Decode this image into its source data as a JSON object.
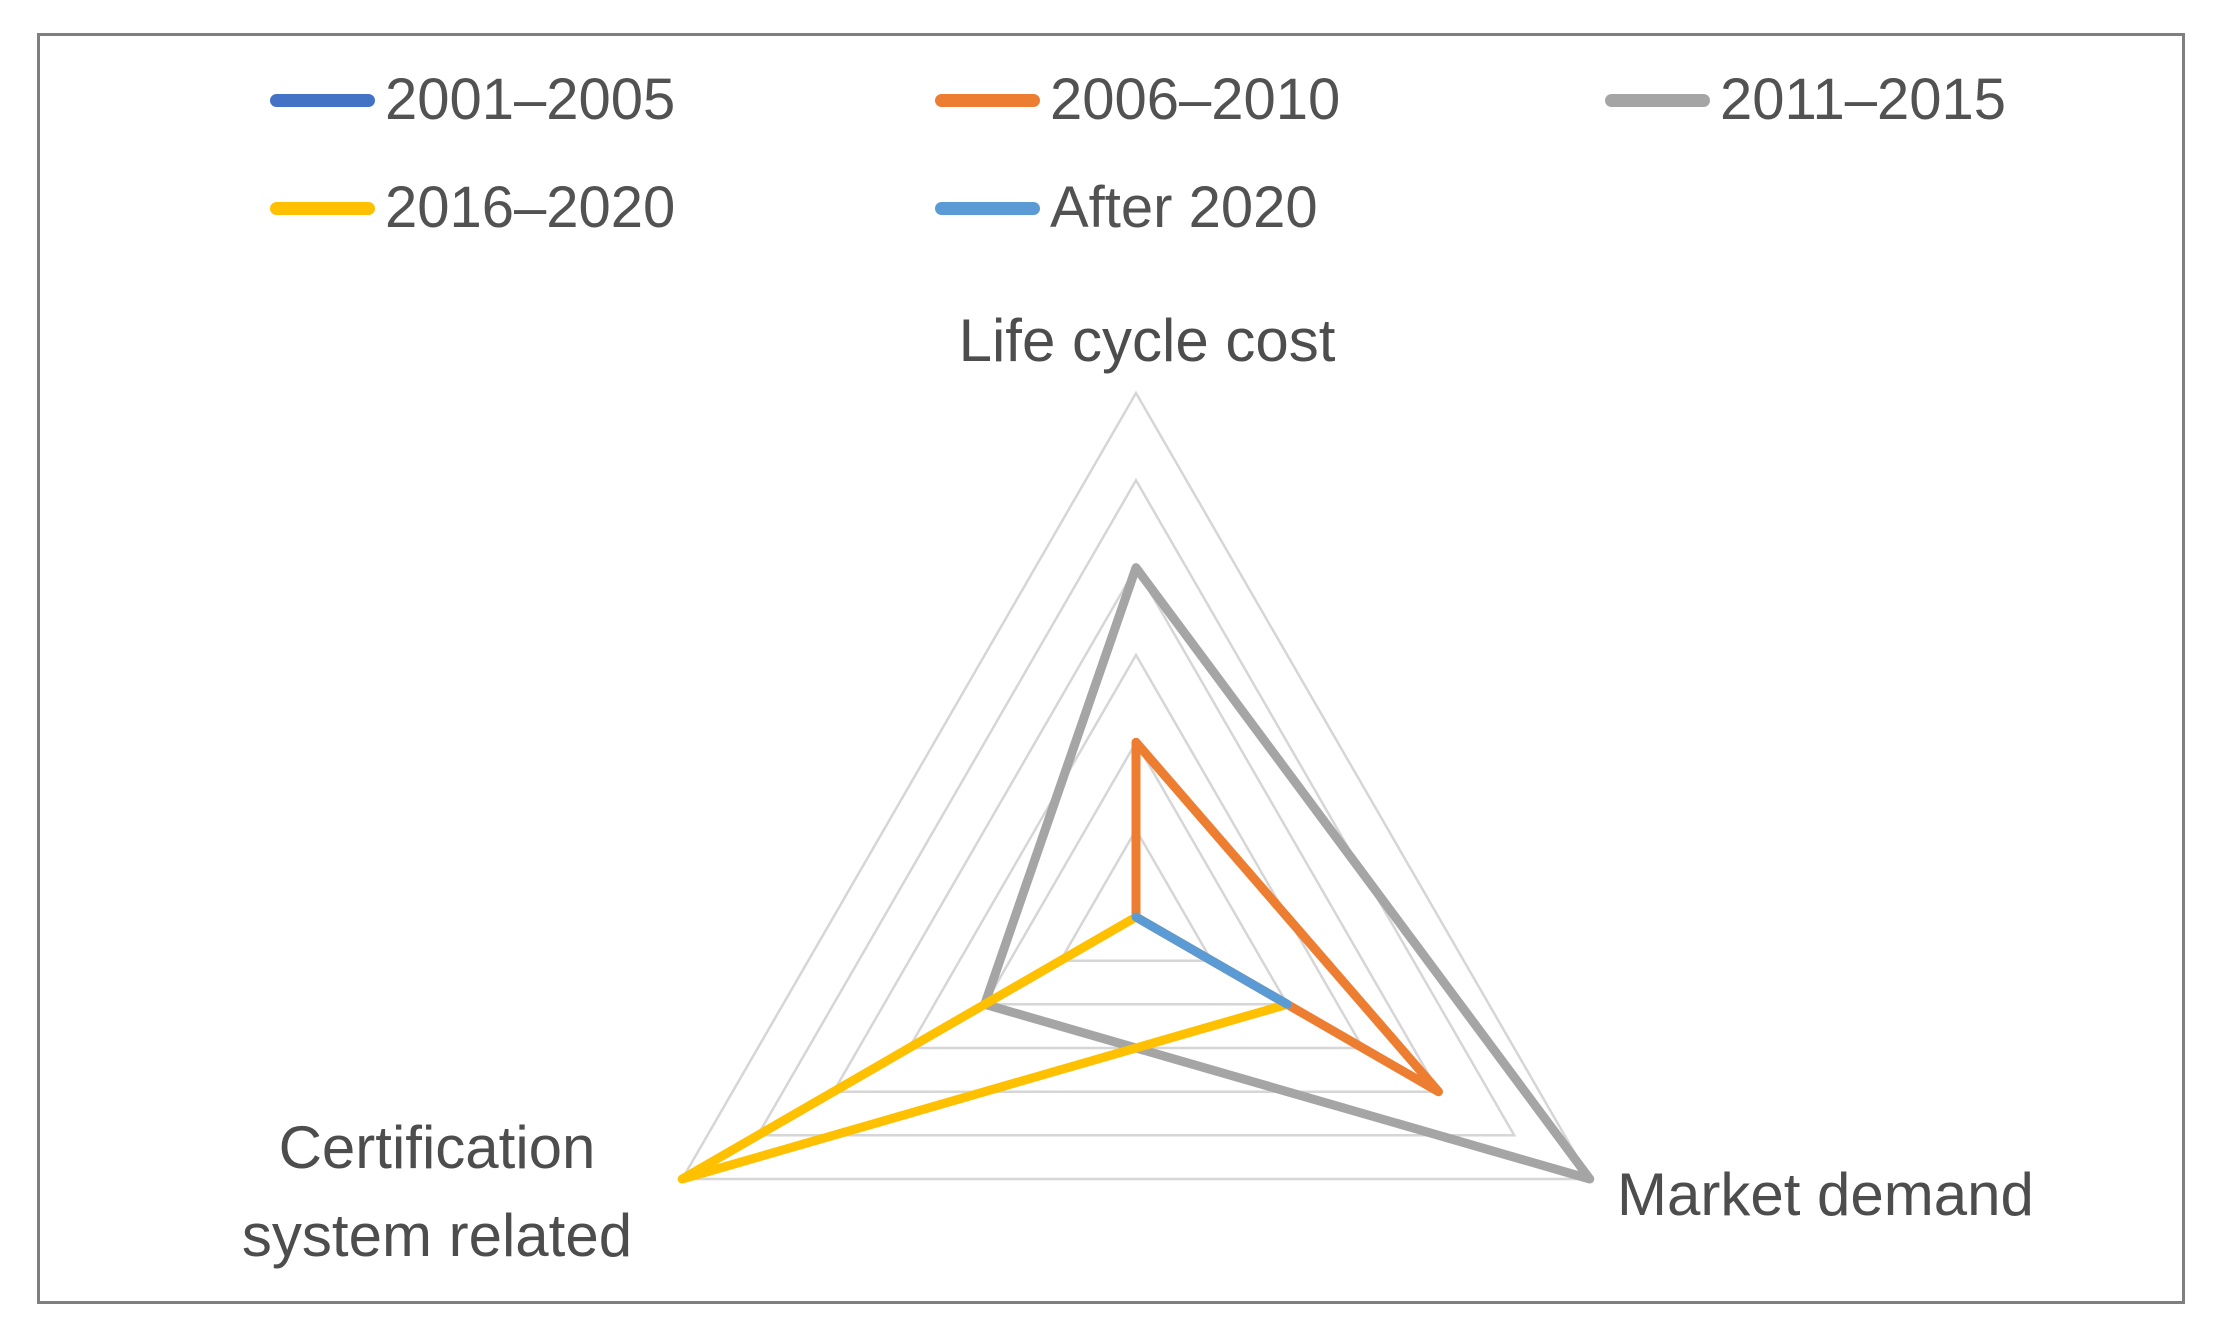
{
  "frame": {
    "border_color": "#7f7f7f",
    "background": "#ffffff"
  },
  "legend": {
    "position": "top",
    "rows": 2,
    "items": [
      {
        "label": "2001–2005",
        "color": "#4472C4"
      },
      {
        "label": "2006–2010",
        "color": "#ED7D31"
      },
      {
        "label": "2011–2015",
        "color": "#A5A5A5"
      },
      {
        "label": "2016–2020",
        "color": "#FFC000"
      },
      {
        "label": "After 2020",
        "color": "#5B9BD5"
      }
    ]
  },
  "chart_data": {
    "type": "radar",
    "categories": [
      "Life cycle cost",
      "Market demand",
      "Certification system related"
    ],
    "series": [
      {
        "name": "2001–2005",
        "color": "#4472C4",
        "values": [
          0,
          0,
          0
        ]
      },
      {
        "name": "2006–2010",
        "color": "#ED7D31",
        "values": [
          2,
          4,
          0
        ]
      },
      {
        "name": "2011–2015",
        "color": "#A5A5A5",
        "values": [
          4,
          6,
          2
        ]
      },
      {
        "name": "2016–2020",
        "color": "#FFC000",
        "values": [
          0,
          2,
          6
        ]
      },
      {
        "name": "After 2020",
        "color": "#5B9BD5",
        "values": [
          0,
          2,
          0
        ]
      }
    ],
    "axis_range": [
      0,
      6
    ],
    "ring_count": 6,
    "grid_on": true,
    "gridline_color": "#D6D6D6",
    "radial_axis_lines": false,
    "title": "",
    "legend_position": "top",
    "axis_labels": {
      "top": "Life cycle cost",
      "right": "Market demand",
      "left": "Certification system related",
      "left_line1": "Certification",
      "left_line2": "system related"
    }
  }
}
